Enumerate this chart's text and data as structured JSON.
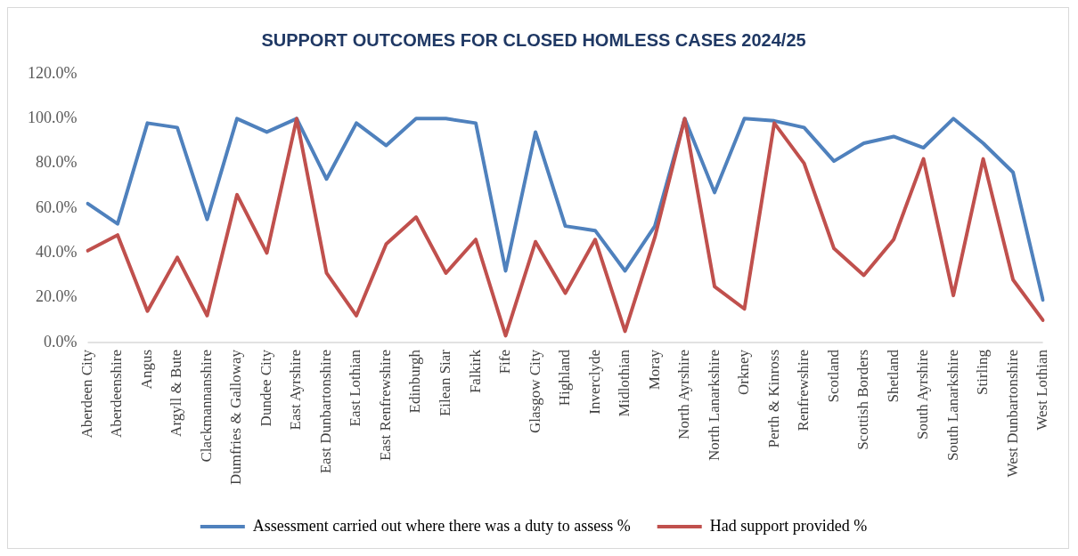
{
  "chart_data": {
    "type": "line",
    "title": "SUPPORT OUTCOMES FOR CLOSED HOMLESS CASES 2024/25",
    "categories": [
      "Aberdeen City",
      "Aberdeenshire",
      "Angus",
      "Argyll & Bute",
      "Clackmannanshire",
      "Dumfries & Galloway",
      "Dundee City",
      "East Ayrshire",
      "East Dunbartonshire",
      "East Lothian",
      "East Renfrewshire",
      "Edinburgh",
      "Eilean Siar",
      "Falkirk",
      "Fife",
      "Glasgow City",
      "Highland",
      "Inverclyde",
      "Midlothian",
      "Moray",
      "North Ayrshire",
      "North Lanarkshire",
      "Orkney",
      "Perth & Kinross",
      "Renfrewshire",
      "Scotland",
      "Scottish Borders",
      "Shetland",
      "South Ayrshire",
      "South Lanarkshire",
      "Stirling",
      "West Dunbartonshire",
      "West Lothian"
    ],
    "series": [
      {
        "name": "Assessment carried out where there was a duty to assess %",
        "color": "#4f81bd",
        "values": [
          62,
          53,
          98,
          96,
          55,
          100,
          94,
          100,
          73,
          98,
          88,
          100,
          100,
          98,
          32,
          94,
          52,
          50,
          32,
          52,
          100,
          67,
          100,
          99,
          96,
          81,
          89,
          92,
          87,
          100,
          89,
          76,
          19
        ]
      },
      {
        "name": "Had support provided %",
        "color": "#c0504d",
        "values": [
          41,
          48,
          14,
          38,
          12,
          66,
          40,
          100,
          31,
          12,
          44,
          56,
          31,
          46,
          3,
          45,
          22,
          46,
          5,
          47,
          100,
          25,
          15,
          98,
          80,
          42,
          30,
          46,
          82,
          21,
          82,
          28,
          10
        ]
      }
    ],
    "ylim": [
      0,
      120
    ],
    "yticks": [
      {
        "value": 0,
        "label": "0.0%"
      },
      {
        "value": 20,
        "label": "20.0%"
      },
      {
        "value": 40,
        "label": "40.0%"
      },
      {
        "value": 60,
        "label": "60.0%"
      },
      {
        "value": 80,
        "label": "80.0%"
      },
      {
        "value": 100,
        "label": "100.0%"
      },
      {
        "value": 120,
        "label": "120.0%"
      }
    ],
    "grid": false,
    "legend": "bottom",
    "marker": "none",
    "line_style": "solid"
  }
}
